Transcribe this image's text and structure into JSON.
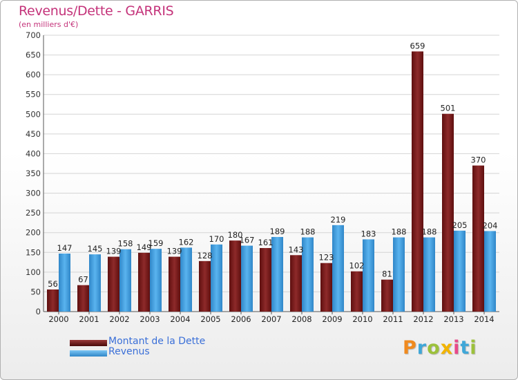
{
  "title": "Revenus/Dette - GARRIS",
  "subtitle": "(en milliers d'€)",
  "logo": {
    "text": "Proxiti",
    "letter_colors": [
      "#f08a1e",
      "#3fa7d8",
      "#9cc13b",
      "#f2b400",
      "#e84a8a",
      "#3fa7d8",
      "#9cc13b"
    ]
  },
  "legend": {
    "placement": "bottom-left",
    "items": [
      {
        "label": "Montant de la Dette",
        "color": "#6b1414"
      },
      {
        "label": "Revenus",
        "color": "#3f9ee0"
      }
    ]
  },
  "chart_data": {
    "type": "bar",
    "categories": [
      "2000",
      "2001",
      "2002",
      "2003",
      "2004",
      "2005",
      "2006",
      "2007",
      "2008",
      "2009",
      "2010",
      "2011",
      "2012",
      "2013",
      "2014"
    ],
    "series": [
      {
        "name": "Montant de la Dette",
        "color": "#7a1b1b",
        "values": [
          56,
          67,
          139,
          149,
          139,
          128,
          180,
          161,
          143,
          123,
          102,
          81,
          659,
          501,
          370
        ]
      },
      {
        "name": "Revenus",
        "color": "#3f9ee0",
        "values": [
          147,
          145,
          158,
          159,
          162,
          170,
          167,
          189,
          188,
          219,
          183,
          188,
          188,
          205,
          204
        ]
      }
    ],
    "title": "Revenus/Dette - GARRIS",
    "ylabel": "(en milliers d'€)",
    "ylim": [
      0,
      700
    ],
    "ytick_step": 50,
    "grid": true
  }
}
